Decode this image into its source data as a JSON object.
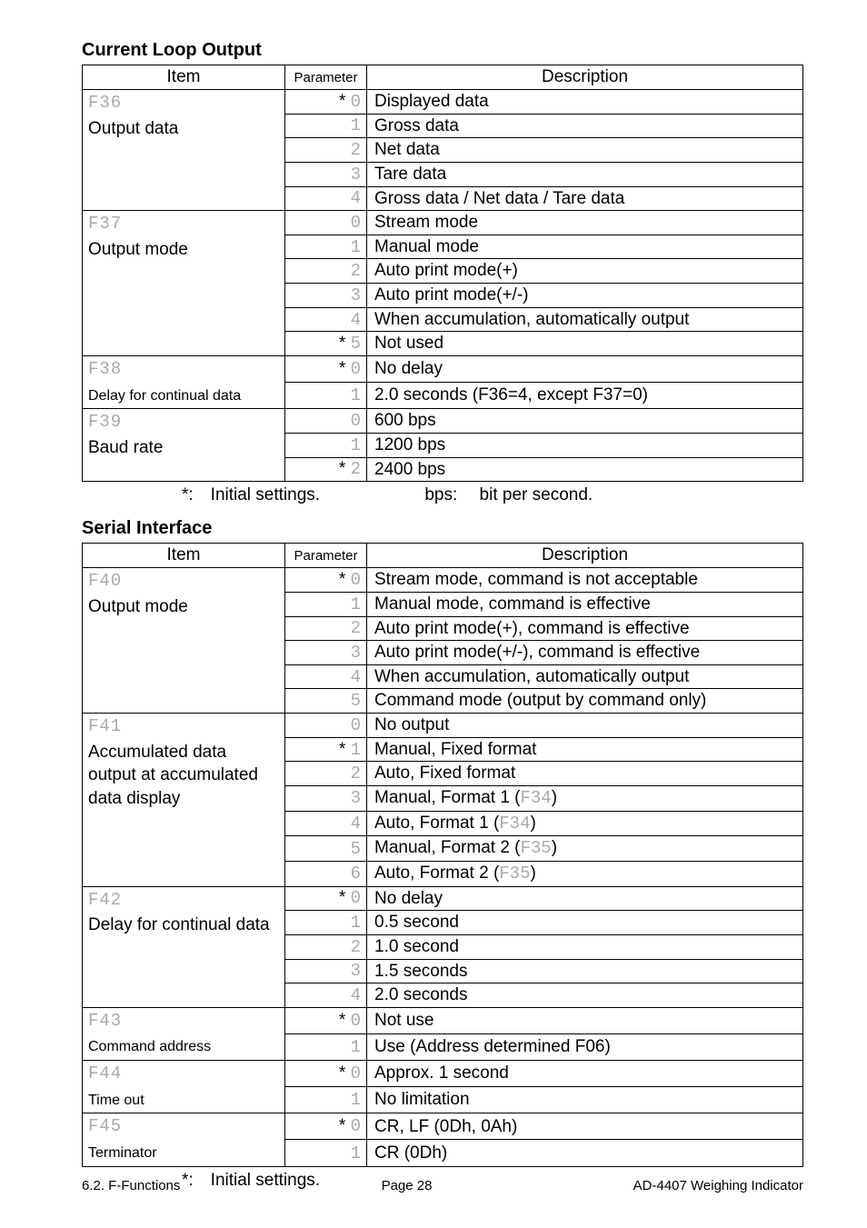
{
  "sections": {
    "currentLoop": {
      "heading": "Current Loop Output",
      "headers": {
        "item": "Item",
        "parameter": "Parameter",
        "description": "Description"
      },
      "groups": [
        {
          "code": "F36",
          "label": "Output data",
          "rows": [
            {
              "star": true,
              "p": "0",
              "d": "Displayed data"
            },
            {
              "star": false,
              "p": "1",
              "d": "Gross data"
            },
            {
              "star": false,
              "p": "2",
              "d": "Net data"
            },
            {
              "star": false,
              "p": "3",
              "d": "Tare data"
            },
            {
              "star": false,
              "p": "4",
              "d": "Gross data / Net data / Tare data"
            }
          ]
        },
        {
          "code": "F37",
          "label": "Output mode",
          "rows": [
            {
              "star": false,
              "p": "0",
              "d": "Stream mode"
            },
            {
              "star": false,
              "p": "1",
              "d": "Manual mode"
            },
            {
              "star": false,
              "p": "2",
              "d": "Auto print mode(+)"
            },
            {
              "star": false,
              "p": "3",
              "d": "Auto print mode(+/-)"
            },
            {
              "star": false,
              "p": "4",
              "d": "When accumulation, automatically output"
            },
            {
              "star": true,
              "p": "5",
              "d": "Not used"
            }
          ]
        },
        {
          "code": "F38",
          "label": "Delay for continual data",
          "rows": [
            {
              "star": true,
              "p": "0",
              "d": "No delay"
            },
            {
              "star": false,
              "p": "1",
              "d": "2.0 seconds (F36=4, except F37=0)"
            }
          ]
        },
        {
          "code": "F39",
          "label": "Baud rate",
          "rows": [
            {
              "star": false,
              "p": "0",
              "d": " 600 bps"
            },
            {
              "star": false,
              "p": "1",
              "d": "1200 bps"
            },
            {
              "star": true,
              "p": "2",
              "d": "2400 bps"
            }
          ]
        }
      ],
      "caption": {
        "left": "*: Initial settings.",
        "right": "bps:  bit per second."
      }
    },
    "serial": {
      "heading": "Serial Interface",
      "headers": {
        "item": "Item",
        "parameter": "Parameter",
        "description": "Description"
      },
      "groups": [
        {
          "code": "F40",
          "label": "Output mode",
          "rows": [
            {
              "star": true,
              "p": "0",
              "d": "Stream mode, command is not acceptable"
            },
            {
              "star": false,
              "p": "1",
              "d": "Manual mode, command is effective"
            },
            {
              "star": false,
              "p": "2",
              "d": "Auto print mode(+), command is effective"
            },
            {
              "star": false,
              "p": "3",
              "d": "Auto print mode(+/-), command is effective"
            },
            {
              "star": false,
              "p": "4",
              "d": "When accumulation, automatically output"
            },
            {
              "star": false,
              "p": "5",
              "d": "Command mode (output by command only)"
            }
          ]
        },
        {
          "code": "F41",
          "label": "Accumulated data output at accumulated data display",
          "rows": [
            {
              "star": false,
              "p": "0",
              "d": "No output"
            },
            {
              "star": true,
              "p": "1",
              "d": "Manual, Fixed format"
            },
            {
              "star": false,
              "p": "2",
              "d": "Auto, Fixed format"
            },
            {
              "star": false,
              "p": "3",
              "d": "Manual, Format 1 (F34)",
              "code": "F34"
            },
            {
              "star": false,
              "p": "4",
              "d": "Auto, Format 1 (F34)",
              "code": "F34"
            },
            {
              "star": false,
              "p": "5",
              "d": "Manual, Format 2 (F35)",
              "code": "F35"
            },
            {
              "star": false,
              "p": "6",
              "d": "Auto, Format 2 (F35)",
              "code": "F35"
            }
          ]
        },
        {
          "code": "F42",
          "label": "Delay for continual data",
          "rows": [
            {
              "star": true,
              "p": "0",
              "d": "No delay"
            },
            {
              "star": false,
              "p": "1",
              "d": "0.5 second"
            },
            {
              "star": false,
              "p": "2",
              "d": "1.0 second"
            },
            {
              "star": false,
              "p": "3",
              "d": "1.5 seconds"
            },
            {
              "star": false,
              "p": "4",
              "d": "2.0 seconds"
            }
          ]
        },
        {
          "code": "F43",
          "label": "Command address",
          "rows": [
            {
              "star": true,
              "p": "0",
              "d": "Not use"
            },
            {
              "star": false,
              "p": "1",
              "d": "Use (Address determined F06)",
              "code": "F06"
            }
          ]
        },
        {
          "code": "F44",
          "label": "Time out",
          "rows": [
            {
              "star": true,
              "p": "0",
              "d": "Approx. 1 second"
            },
            {
              "star": false,
              "p": "1",
              "d": "No limitation"
            }
          ]
        },
        {
          "code": "F45",
          "label": "Terminator",
          "rows": [
            {
              "star": true,
              "p": "0",
              "d": "CR, LF (0Dh, 0Ah)"
            },
            {
              "star": false,
              "p": "1",
              "d": "CR (0Dh)"
            }
          ]
        }
      ],
      "caption": {
        "left": "*: Initial settings."
      }
    }
  },
  "footer": {
    "left": "6.2. F-Functions",
    "center": "Page 28",
    "right": "AD-4407 Weighing Indicator"
  },
  "segGlyph": {
    "0": "0",
    "1": "1",
    "2": "2",
    "3": "3",
    "4": "4",
    "5": "5",
    "6": "6",
    "7": "7",
    "8": "8",
    "9": "9",
    "F": "F"
  },
  "style": {
    "labelSmallGroups": [
      "F38",
      "F43",
      "F44",
      "F45"
    ]
  }
}
